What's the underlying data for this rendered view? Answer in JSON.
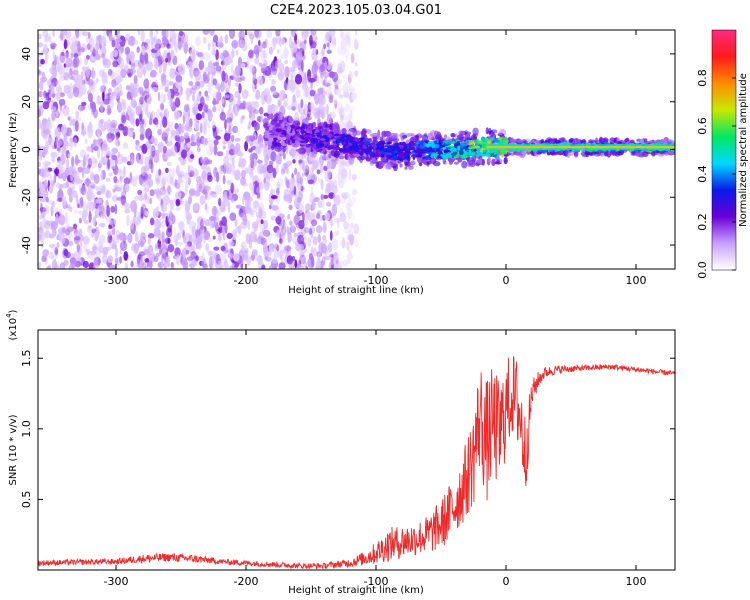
{
  "title": "C2E4.2023.105.03.04.G01",
  "chart_data": [
    {
      "type": "heatmap",
      "xlabel": "Height of straight line (km)",
      "ylabel": "Frequency (Hz)",
      "xlim": [
        -360,
        130
      ],
      "ylim": [
        -50,
        50
      ],
      "xticks": [
        -300,
        -200,
        -100,
        0,
        100
      ],
      "yticks": [
        -40,
        -20,
        0,
        20,
        40
      ],
      "colorbar": {
        "label": "Normalized spectral amplitude",
        "range": [
          0,
          1
        ],
        "ticks": [
          "0.0",
          "0.2",
          "0.4",
          "0.6",
          "0.8"
        ],
        "tick_values": [
          0,
          0.2,
          0.4,
          0.6,
          0.8
        ],
        "colors": [
          "#ffffff",
          "#c9a0ff",
          "#6a00d8",
          "#0a1ae8",
          "#00d8ff",
          "#00e860",
          "#c8e800",
          "#ff8c00",
          "#ff1a1a",
          "#ff2a80"
        ]
      },
      "noise_region_x": [
        -360,
        -130
      ],
      "signal_line": {
        "x": [
          -185,
          -160,
          -140,
          -120,
          -100,
          -80,
          -60,
          -40,
          -20,
          0,
          20,
          60,
          100,
          130
        ],
        "y": [
          8,
          6,
          4,
          2,
          0,
          -1,
          0,
          0,
          1,
          1,
          1,
          1,
          1,
          1
        ],
        "amplitude": [
          0.2,
          0.25,
          0.3,
          0.35,
          0.35,
          0.35,
          0.45,
          0.55,
          0.65,
          0.7,
          0.6,
          0.6,
          0.6,
          0.6
        ]
      },
      "legend": "none",
      "grid": false
    },
    {
      "type": "line",
      "xlabel": "Height of straight line (km)",
      "ylabel": "SNR (10 * v/v)",
      "yscale_label": "(x10",
      "yscale_exponent": "4",
      "yscale_suffix": ")",
      "xlim": [
        -360,
        130
      ],
      "ylim": [
        0,
        1.7
      ],
      "xticks": [
        -300,
        -200,
        -100,
        0,
        100
      ],
      "yticks": [
        0.5,
        1.0,
        1.5
      ],
      "ytick_labels": [
        "0.5",
        "1.0",
        "1.5"
      ],
      "series": [
        {
          "color": "#ee2a2a",
          "x": [
            -360,
            -300,
            -280,
            -260,
            -240,
            -220,
            -200,
            -180,
            -160,
            -140,
            -120,
            -110,
            -100,
            -90,
            -80,
            -70,
            -60,
            -50,
            -40,
            -30,
            -25,
            -20,
            -15,
            -10,
            -5,
            0,
            5,
            10,
            15,
            20,
            25,
            30,
            40,
            60,
            80,
            100,
            120,
            130
          ],
          "y": [
            0.05,
            0.06,
            0.08,
            0.09,
            0.08,
            0.06,
            0.05,
            0.04,
            0.03,
            0.03,
            0.05,
            0.08,
            0.12,
            0.18,
            0.2,
            0.22,
            0.25,
            0.32,
            0.45,
            0.65,
            0.8,
            1.1,
            0.9,
            1.05,
            0.95,
            1.15,
            1.25,
            1.15,
            0.8,
            1.25,
            1.35,
            1.4,
            1.42,
            1.43,
            1.44,
            1.42,
            1.4,
            1.39
          ],
          "noise_amplitude": [
            0.02,
            0.02,
            0.03,
            0.03,
            0.03,
            0.02,
            0.02,
            0.02,
            0.02,
            0.02,
            0.03,
            0.05,
            0.08,
            0.12,
            0.12,
            0.12,
            0.14,
            0.18,
            0.22,
            0.28,
            0.35,
            0.4,
            0.45,
            0.4,
            0.4,
            0.35,
            0.3,
            0.35,
            0.3,
            0.1,
            0.06,
            0.04,
            0.03,
            0.02,
            0.02,
            0.02,
            0.02,
            0.02
          ]
        }
      ],
      "legend": "none",
      "grid": false
    }
  ]
}
